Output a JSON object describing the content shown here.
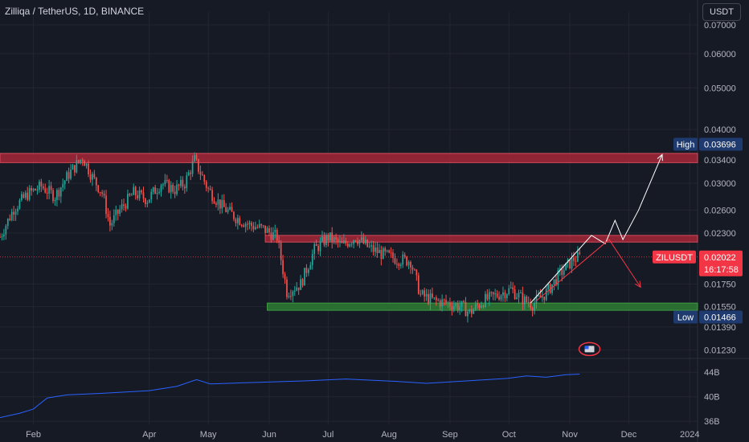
{
  "header": {
    "title": "Zilliqa / TetherUS, 1D, BINANCE",
    "currency": "USDT"
  },
  "price_axis": {
    "ticks": [
      "0.07000",
      "0.06000",
      "0.05000",
      "0.04000",
      "0.03400",
      "0.03000",
      "0.02600",
      "0.02300",
      "0.01750",
      "0.01550",
      "0.01390",
      "0.01230"
    ],
    "high_label": "High",
    "high_value": "0.03696",
    "low_label": "Low",
    "low_value": "0.01466",
    "symbol_label": "ZILUSDT",
    "last_price": "0.02022",
    "countdown": "16:17:58"
  },
  "volume_axis": {
    "ticks": [
      "44B",
      "40B",
      "36B"
    ]
  },
  "time_axis": {
    "ticks": [
      "Feb",
      "Apr",
      "May",
      "Jun",
      "Jul",
      "Aug",
      "Sep",
      "Oct",
      "Nov",
      "Dec",
      "2024"
    ]
  },
  "colors": {
    "background": "#161a25",
    "up": "#26a69a",
    "down": "#ef5350",
    "resistance_zone": "#b2283a",
    "support_zone": "#2e7d32",
    "volume_line": "#2962ff",
    "projection_up": "#ffffff",
    "projection_down": "#f23645",
    "last_price_badge": "#f23645",
    "extreme_badge": "#1e3a6e"
  },
  "chart_data": {
    "type": "candlestick",
    "title": "Zilliqa / TetherUS, 1D, BINANCE",
    "yscale": "log",
    "ylim": [
      0.0118,
      0.075
    ],
    "x_range": [
      "2023-01-15",
      "2024-01-05"
    ],
    "high": 0.03696,
    "low": 0.01466,
    "last": 0.02022,
    "price_path": [
      [
        "2023-01-15",
        0.0225
      ],
      [
        "2023-01-22",
        0.0262
      ],
      [
        "2023-01-29",
        0.0283
      ],
      [
        "2023-02-05",
        0.0295
      ],
      [
        "2023-02-12",
        0.028
      ],
      [
        "2023-02-19",
        0.0315
      ],
      [
        "2023-02-26",
        0.0345
      ],
      [
        "2023-03-03",
        0.031
      ],
      [
        "2023-03-08",
        0.0285
      ],
      [
        "2023-03-12",
        0.024
      ],
      [
        "2023-03-17",
        0.026
      ],
      [
        "2023-03-24",
        0.0285
      ],
      [
        "2023-03-31",
        0.0275
      ],
      [
        "2023-04-07",
        0.03
      ],
      [
        "2023-04-14",
        0.029
      ],
      [
        "2023-04-19",
        0.03
      ],
      [
        "2023-04-24",
        0.034
      ],
      [
        "2023-05-01",
        0.029
      ],
      [
        "2023-05-08",
        0.0265
      ],
      [
        "2023-05-15",
        0.025
      ],
      [
        "2023-05-22",
        0.024
      ],
      [
        "2023-05-29",
        0.0235
      ],
      [
        "2023-06-05",
        0.0225
      ],
      [
        "2023-06-10",
        0.0168
      ],
      [
        "2023-06-17",
        0.0175
      ],
      [
        "2023-06-24",
        0.021
      ],
      [
        "2023-07-01",
        0.0225
      ],
      [
        "2023-07-08",
        0.0215
      ],
      [
        "2023-07-15",
        0.0225
      ],
      [
        "2023-07-22",
        0.0212
      ],
      [
        "2023-07-29",
        0.0205
      ],
      [
        "2023-08-05",
        0.02
      ],
      [
        "2023-08-12",
        0.0198
      ],
      [
        "2023-08-17",
        0.0165
      ],
      [
        "2023-08-24",
        0.016
      ],
      [
        "2023-08-31",
        0.0158
      ],
      [
        "2023-09-07",
        0.0155
      ],
      [
        "2023-09-11",
        0.015
      ],
      [
        "2023-09-18",
        0.016
      ],
      [
        "2023-09-25",
        0.0165
      ],
      [
        "2023-10-02",
        0.017
      ],
      [
        "2023-10-09",
        0.016
      ],
      [
        "2023-10-13",
        0.0157
      ],
      [
        "2023-10-20",
        0.0167
      ],
      [
        "2023-10-27",
        0.0185
      ],
      [
        "2023-11-03",
        0.02
      ],
      [
        "2023-11-06",
        0.0202
      ]
    ],
    "zones": [
      {
        "type": "resistance",
        "from": "2023-01-15",
        "to": "2024-01-05",
        "price_low": 0.0335,
        "price_high": 0.0352
      },
      {
        "type": "resistance",
        "from": "2023-05-30",
        "to": "2024-01-05",
        "price_low": 0.0219,
        "price_high": 0.0227
      },
      {
        "type": "support",
        "from": "2023-05-31",
        "to": "2024-01-05",
        "price_low": 0.0152,
        "price_high": 0.0158
      }
    ],
    "projections": [
      {
        "direction": "up",
        "points": [
          [
            "2023-10-12",
            0.0158
          ],
          [
            "2023-11-12",
            0.0227
          ],
          [
            "2023-11-19",
            0.0217
          ],
          [
            "2023-11-24",
            0.0246
          ],
          [
            "2023-11-28",
            0.0222
          ],
          [
            "2023-12-06",
            0.026
          ],
          [
            "2023-12-18",
            0.035
          ]
        ]
      },
      {
        "direction": "down",
        "points": [
          [
            "2023-10-15",
            0.016
          ],
          [
            "2023-11-21",
            0.0222
          ],
          [
            "2023-12-07",
            0.0172
          ]
        ]
      }
    ],
    "volume": {
      "ylim": [
        35.5,
        46.0
      ],
      "unit": "B",
      "points": [
        [
          "2023-01-15",
          36.6
        ],
        [
          "2023-01-25",
          37.3
        ],
        [
          "2023-02-01",
          38.0
        ],
        [
          "2023-02-08",
          39.8
        ],
        [
          "2023-02-18",
          40.3
        ],
        [
          "2023-03-10",
          40.6
        ],
        [
          "2023-04-01",
          41.0
        ],
        [
          "2023-04-15",
          41.7
        ],
        [
          "2023-04-25",
          42.8
        ],
        [
          "2023-05-02",
          42.1
        ],
        [
          "2023-05-20",
          42.3
        ],
        [
          "2023-06-20",
          42.6
        ],
        [
          "2023-07-10",
          42.9
        ],
        [
          "2023-08-05",
          42.5
        ],
        [
          "2023-08-20",
          42.2
        ],
        [
          "2023-09-10",
          42.6
        ],
        [
          "2023-09-30",
          43.0
        ],
        [
          "2023-10-10",
          43.4
        ],
        [
          "2023-10-20",
          43.2
        ],
        [
          "2023-10-30",
          43.6
        ],
        [
          "2023-11-06",
          43.7
        ]
      ]
    }
  }
}
